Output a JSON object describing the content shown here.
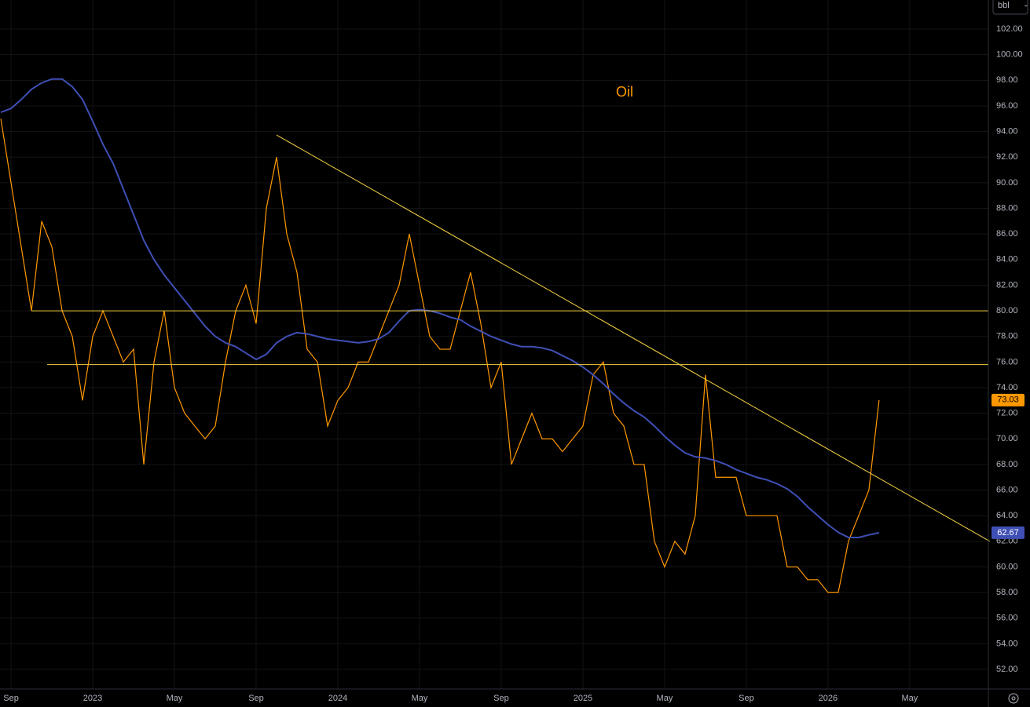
{
  "chart_data": {
    "type": "line",
    "title": "Oil",
    "unit_button": "bbl",
    "x": [
      -0.5,
      0,
      0.5,
      1,
      1.5,
      2,
      2.5,
      3,
      3.5,
      4,
      4.5,
      5,
      5.5,
      6,
      6.5,
      7,
      7.5,
      8,
      8.5,
      9,
      9.5,
      10,
      10.5,
      11,
      11.5,
      12,
      12.5,
      13,
      13.5,
      14,
      14.5,
      15,
      15.5,
      16,
      16.5,
      17,
      17.5,
      18,
      18.5,
      19,
      19.5,
      20,
      20.5,
      21,
      21.5,
      22,
      22.5,
      23,
      23.5,
      24,
      24.5,
      25,
      25.5,
      26,
      26.5,
      27,
      27.5,
      28,
      28.5,
      29,
      29.5,
      30,
      30.5,
      31,
      31.5,
      32,
      32.5,
      33,
      33.5,
      34,
      34.5,
      35,
      35.5,
      36,
      36.5,
      37,
      37.5,
      38,
      38.5,
      39,
      39.5,
      40,
      40.5,
      41,
      41.5,
      42,
      42.5
    ],
    "series": [
      {
        "color": "#ff9800",
        "values": [
          95,
          90,
          85,
          80,
          87,
          85,
          80,
          78,
          73,
          78,
          80,
          78,
          76,
          77,
          68,
          76,
          80,
          74,
          72,
          71,
          70,
          71,
          76,
          80,
          82,
          79,
          88,
          92,
          86,
          83,
          77,
          76,
          71,
          73,
          74,
          76,
          76,
          78,
          80,
          82,
          86,
          82,
          78,
          77,
          77,
          80,
          83,
          79,
          74,
          76,
          68,
          70,
          72,
          70,
          70,
          69,
          70,
          71,
          75,
          76,
          72,
          71,
          68,
          68,
          62,
          60,
          62,
          61,
          64,
          75,
          67,
          67,
          67,
          64,
          64,
          64,
          64,
          60,
          60,
          59,
          59,
          58,
          58,
          62,
          64,
          66,
          73.03
        ]
      },
      {
        "color": "#3f4fb5",
        "values": [
          95.5,
          95.8,
          96.5,
          97.3,
          97.8,
          98.1,
          98.1,
          97.5,
          96.5,
          94.8,
          93,
          91.5,
          89.5,
          87.5,
          85.5,
          84,
          82.8,
          81.8,
          80.8,
          79.8,
          78.8,
          78,
          77.5,
          77.2,
          76.7,
          76.2,
          76.6,
          77.5,
          78,
          78.3,
          78.2,
          78,
          77.8,
          77.7,
          77.6,
          77.5,
          77.6,
          77.8,
          78.3,
          79.2,
          80,
          80.1,
          80,
          79.8,
          79.5,
          79.3,
          78.8,
          78.4,
          78,
          77.7,
          77.4,
          77.2,
          77.2,
          77.1,
          76.9,
          76.5,
          76.1,
          75.6,
          75,
          74.3,
          73.5,
          72.8,
          72.2,
          71.7,
          71,
          70.2,
          69.5,
          68.9,
          68.6,
          68.5,
          68.3,
          68,
          67.6,
          67.3,
          67,
          66.8,
          66.5,
          66.1,
          65.5,
          64.7,
          64,
          63.3,
          62.7,
          62.3,
          62.3,
          62.5,
          62.67
        ]
      }
    ],
    "trendlines": [
      {
        "color": "#f5d142",
        "x": [
          1.0,
          47.85
        ],
        "values": [
          80,
          80
        ]
      },
      {
        "color": "#f5d142",
        "x": [
          1.77,
          47.85
        ],
        "values": [
          75.8,
          75.8
        ]
      },
      {
        "color": "#f5d142",
        "x": [
          13,
          47.92
        ],
        "values": [
          93.73,
          62.0
        ]
      }
    ],
    "xlim": [
      -0.54,
      47.85
    ],
    "ylim": [
      50.47,
      104.27
    ],
    "xticks": [
      {
        "value": 0,
        "label": "Sep"
      },
      {
        "value": 4,
        "label": "2023"
      },
      {
        "value": 8,
        "label": "May"
      },
      {
        "value": 12,
        "label": "Sep"
      },
      {
        "value": 16,
        "label": "2024"
      },
      {
        "value": 20,
        "label": "May"
      },
      {
        "value": 24,
        "label": "Sep"
      },
      {
        "value": 28,
        "label": "2025"
      },
      {
        "value": 32,
        "label": "May"
      },
      {
        "value": 36,
        "label": "Sep"
      },
      {
        "value": 40,
        "label": "2026"
      },
      {
        "value": 44,
        "label": "May"
      }
    ],
    "yticks": [
      {
        "value": 52,
        "label": "52.00"
      },
      {
        "value": 54,
        "label": "54.00"
      },
      {
        "value": 56,
        "label": "56.00"
      },
      {
        "value": 58,
        "label": "58.00"
      },
      {
        "value": 60,
        "label": "60.00"
      },
      {
        "value": 62,
        "label": "62.00"
      },
      {
        "value": 64,
        "label": "64.00"
      },
      {
        "value": 66,
        "label": "66.00"
      },
      {
        "value": 68,
        "label": "68.00"
      },
      {
        "value": 70,
        "label": "70.00"
      },
      {
        "value": 72,
        "label": "72.00"
      },
      {
        "value": 74,
        "label": "74.00"
      },
      {
        "value": 76,
        "label": "76.00"
      },
      {
        "value": 78,
        "label": "78.00"
      },
      {
        "value": 80,
        "label": "80.00"
      },
      {
        "value": 82,
        "label": "82.00"
      },
      {
        "value": 84,
        "label": "84.00"
      },
      {
        "value": 86,
        "label": "86.00"
      },
      {
        "value": 88,
        "label": "88.00"
      },
      {
        "value": 90,
        "label": "90.00"
      },
      {
        "value": 92,
        "label": "92.00"
      },
      {
        "value": 94,
        "label": "94.00"
      },
      {
        "value": 96,
        "label": "96.00"
      },
      {
        "value": 98,
        "label": "98.00"
      },
      {
        "value": 100,
        "label": "100.00"
      },
      {
        "value": 102,
        "label": "102.00"
      }
    ],
    "grid": true
  }
}
